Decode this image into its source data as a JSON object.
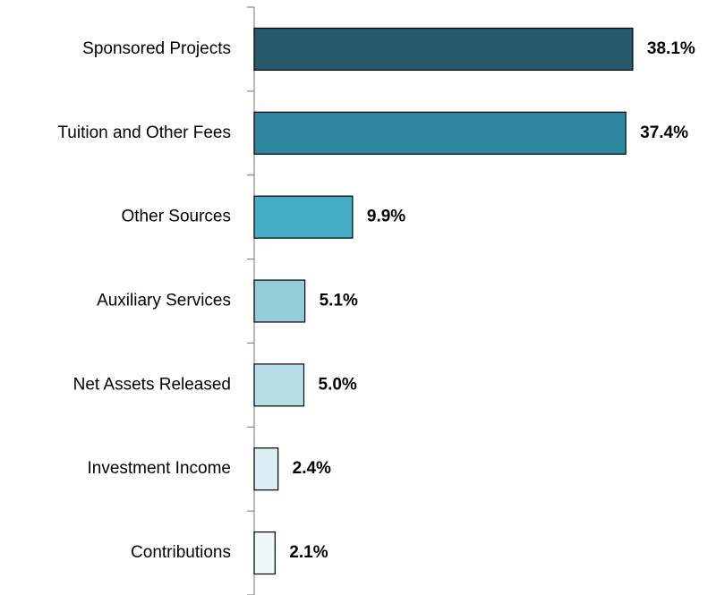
{
  "chart_data": {
    "type": "bar",
    "orientation": "horizontal",
    "categories": [
      "Sponsored Projects",
      "Tuition and Other Fees",
      "Other Sources",
      "Auxiliary Services",
      "Net Assets Released",
      "Investment Income",
      "Contributions"
    ],
    "values": [
      38.1,
      37.4,
      9.9,
      5.1,
      5.0,
      2.4,
      2.1
    ],
    "value_labels": [
      "38.1%",
      "37.4%",
      "9.9%",
      "5.1%",
      "5.0%",
      "2.4%",
      "2.1%"
    ],
    "colors": [
      "#245a6b",
      "#2e879e",
      "#46adc6",
      "#93cddc",
      "#b8dfe8",
      "#d9eff4",
      "#eef7f9"
    ]
  }
}
